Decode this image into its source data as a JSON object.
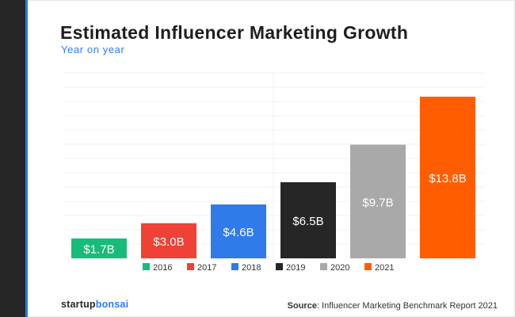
{
  "chart_data": {
    "type": "bar",
    "title": "Estimated Influencer Marketing Growth",
    "subtitle": "Year on year",
    "categories": [
      "2016",
      "2017",
      "2018",
      "2019",
      "2020",
      "2021"
    ],
    "values": [
      1.7,
      3.0,
      4.6,
      6.5,
      9.7,
      13.8
    ],
    "data_labels": [
      "$1.7B",
      "$3.0B",
      "$4.6B",
      "$6.5B",
      "$9.7B",
      "$13.8B"
    ],
    "colors": [
      "#19bb7b",
      "#ef4136",
      "#2f7bea",
      "#262626",
      "#a9a9a9",
      "#ff5d00"
    ],
    "xlabel": "",
    "ylabel": "",
    "ylim": [
      0,
      16
    ],
    "grid": true,
    "legend": "bottom"
  },
  "brand": {
    "part1": "startup",
    "part2": "bonsai"
  },
  "source": {
    "label": "Source",
    "text": ": Influencer Marketing Benchmark Report 2021"
  }
}
